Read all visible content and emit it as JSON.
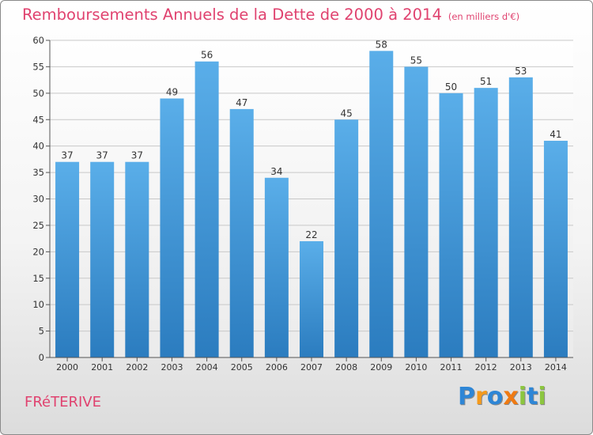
{
  "chart_data": {
    "type": "bar",
    "title": "Remboursements Annuels de la Dette de 2000 à 2014",
    "unit_note": "(en milliers d'€)",
    "categories": [
      "2000",
      "2001",
      "2002",
      "2003",
      "2004",
      "2005",
      "2006",
      "2007",
      "2008",
      "2009",
      "2010",
      "2011",
      "2012",
      "2013",
      "2014"
    ],
    "values": [
      37,
      37,
      37,
      49,
      56,
      47,
      34,
      22,
      45,
      58,
      55,
      50,
      51,
      53,
      41
    ],
    "ylim": [
      0,
      60
    ],
    "yticks": [
      0,
      5,
      10,
      15,
      20,
      25,
      30,
      35,
      40,
      45,
      50,
      55,
      60
    ],
    "grid": true,
    "bar_color_top": "#5aaee9",
    "bar_color_bottom": "#2b7cbf"
  },
  "footer": {
    "town": "FRéTERIVE",
    "brand": "Proxiti",
    "brand_letters": [
      {
        "ch": "P",
        "color": "#2e86d6"
      },
      {
        "ch": "r",
        "color": "#f59a1b"
      },
      {
        "ch": "o",
        "color": "#2e86d6"
      },
      {
        "ch": "x",
        "color": "#f07a12"
      },
      {
        "ch": "i",
        "color": "#8cc63f"
      },
      {
        "ch": "t",
        "color": "#2e86d6"
      },
      {
        "ch": "i",
        "color": "#8cc63f"
      }
    ]
  },
  "colors": {
    "accent": "#e0426f",
    "grid": "#c8c8c8",
    "axis_text": "#333333"
  }
}
